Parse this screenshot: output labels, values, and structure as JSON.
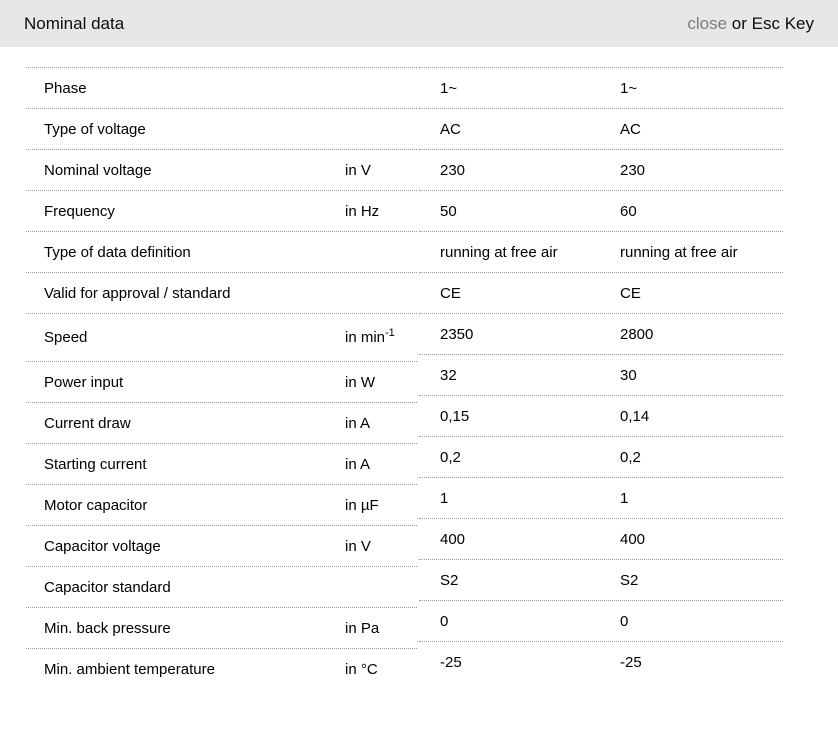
{
  "header": {
    "title": "Nominal data",
    "close_label": "close",
    "close_suffix": " or Esc Key"
  },
  "colors": {
    "header_bg": "#e7e7e7",
    "divider": "#9b9b9b",
    "close_link": "#7d7d7d",
    "text": "#000000"
  },
  "table": {
    "rows": [
      {
        "label": "Phase",
        "unit": "",
        "unit_sup": "",
        "col1": "1~",
        "col2": "1~"
      },
      {
        "label": "Type of voltage",
        "unit": "",
        "unit_sup": "",
        "col1": "AC",
        "col2": "AC"
      },
      {
        "label": "Nominal voltage",
        "unit": "in V",
        "unit_sup": "",
        "col1": "230",
        "col2": "230"
      },
      {
        "label": "Frequency",
        "unit": "in Hz",
        "unit_sup": "",
        "col1": "50",
        "col2": "60"
      },
      {
        "label": "Type of data definition",
        "unit": "",
        "unit_sup": "",
        "col1": "running at free air",
        "col2": "running at free air"
      },
      {
        "label": "Valid for approval / standard",
        "unit": "",
        "unit_sup": "",
        "col1": "CE",
        "col2": "CE"
      },
      {
        "label": "Speed",
        "unit": "in min",
        "unit_sup": "-1",
        "col1": "2350",
        "col2": "2800"
      },
      {
        "label": "Power input",
        "unit": "in W",
        "unit_sup": "",
        "col1": "32",
        "col2": "30"
      },
      {
        "label": "Current draw",
        "unit": "in A",
        "unit_sup": "",
        "col1": "0,15",
        "col2": "0,14"
      },
      {
        "label": "Starting current",
        "unit": "in A",
        "unit_sup": "",
        "col1": "0,2",
        "col2": "0,2"
      },
      {
        "label": "Motor capacitor",
        "unit": "in µF",
        "unit_sup": "",
        "col1": "1",
        "col2": "1"
      },
      {
        "label": "Capacitor voltage",
        "unit": "in V",
        "unit_sup": "",
        "col1": "400",
        "col2": "400"
      },
      {
        "label": "Capacitor standard",
        "unit": "",
        "unit_sup": "",
        "col1": "S2",
        "col2": "S2"
      },
      {
        "label": "Min. back pressure",
        "unit": "in Pa",
        "unit_sup": "",
        "col1": "0",
        "col2": "0"
      },
      {
        "label": "Min. ambient temperature",
        "unit": "in °C",
        "unit_sup": "",
        "col1": "-25",
        "col2": "-25"
      }
    ]
  }
}
